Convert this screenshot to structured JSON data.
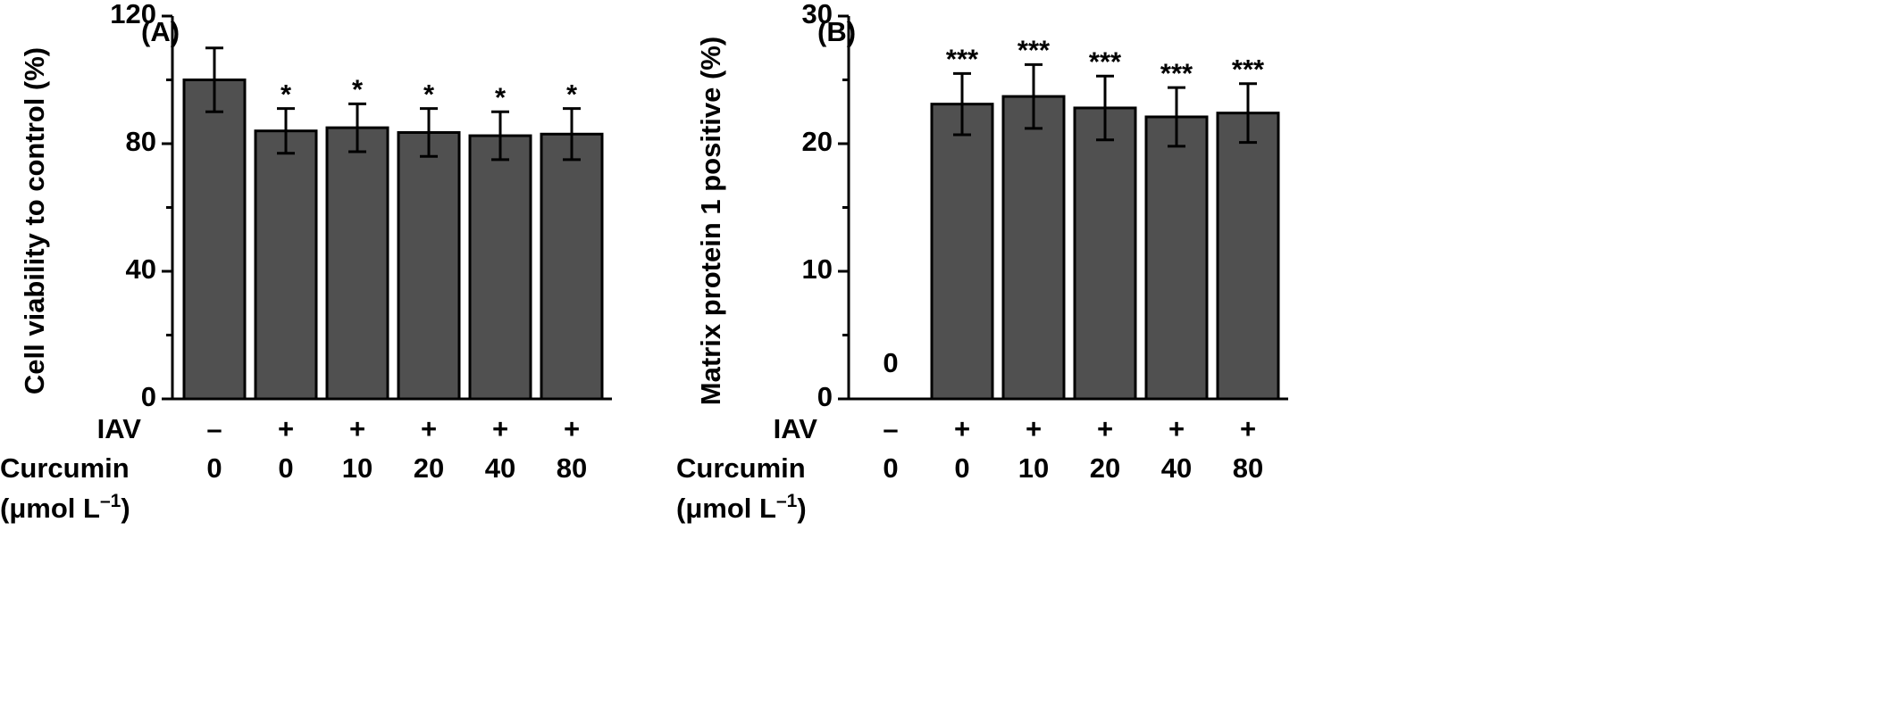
{
  "chart_data": [
    {
      "type": "bar",
      "panel": "(A)",
      "ylabel": "Cell viability to control (%)",
      "iav_label": "IAV",
      "iav": [
        "–",
        "+",
        "+",
        "+",
        "+",
        "+"
      ],
      "categories_label": "Curcumin",
      "categories": [
        "0",
        "0",
        "10",
        "20",
        "40",
        "80"
      ],
      "unit": [
        "(μmol L",
        "–1",
        ")"
      ],
      "values": [
        100,
        84,
        85,
        83.5,
        82.5,
        83
      ],
      "errors": [
        10,
        7,
        7.5,
        7.5,
        7.5,
        8
      ],
      "annotations": [
        null,
        "*",
        "*",
        "*",
        "*",
        "*"
      ],
      "color": "#505050",
      "ylim": [
        0,
        120
      ],
      "yticks": [
        0,
        40,
        80,
        120
      ],
      "yminorticks": [
        20,
        60,
        100
      ]
    },
    {
      "type": "bar",
      "panel": "(B)",
      "ylabel": "Matrix protein 1 positive (%)",
      "iav_label": "IAV",
      "iav": [
        "–",
        "+",
        "+",
        "+",
        "+",
        "+"
      ],
      "categories_label": "Curcumin",
      "categories": [
        "0",
        "0",
        "10",
        "20",
        "40",
        "80"
      ],
      "unit": [
        "(μmol L",
        "–1",
        ")"
      ],
      "values": [
        0,
        23.1,
        23.7,
        22.8,
        22.1,
        22.4
      ],
      "value_labels": [
        "0",
        null,
        null,
        null,
        null,
        null
      ],
      "errors": [
        null,
        2.4,
        2.5,
        2.5,
        2.3,
        2.3
      ],
      "annotations": [
        null,
        "***",
        "***",
        "***",
        "***",
        "***"
      ],
      "color": "#505050",
      "ylim": [
        0,
        30
      ],
      "yticks": [
        0,
        10,
        20,
        30
      ],
      "yminorticks": [
        5,
        15,
        25
      ]
    }
  ]
}
